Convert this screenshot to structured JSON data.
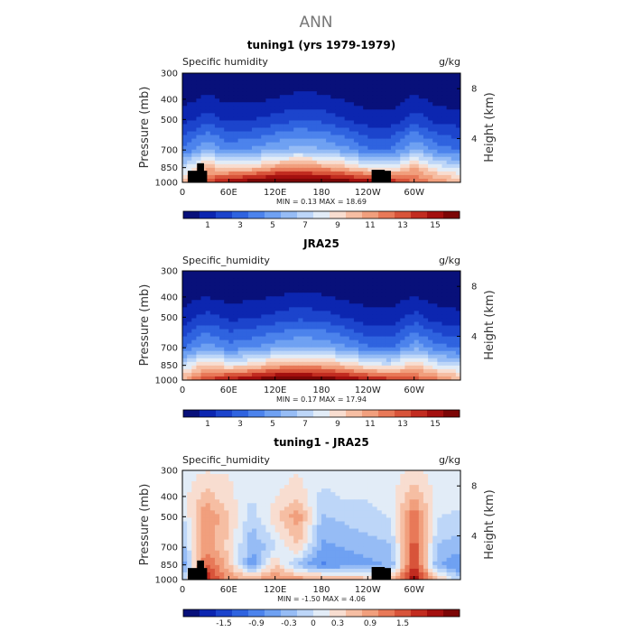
{
  "page_title": "ANN",
  "chart_data": [
    {
      "type": "heatmap",
      "title": "tuning1 (yrs 1979-1979)",
      "field_label": "Specific humidity",
      "units": "g/kg",
      "ylabel": "Pressure (mb)",
      "ylabel_right": "Height (km)",
      "x_ticks": [
        "0",
        "60E",
        "120E",
        "180",
        "120W",
        "60W"
      ],
      "y_ticks": [
        "300",
        "400",
        "500",
        "700",
        "850",
        "1000"
      ],
      "y_right_ticks": [
        "8",
        "4"
      ],
      "stats": {
        "min": 0.13,
        "max": 18.69,
        "text": "MIN =    0.13   MAX =   18.69"
      },
      "colorbar_ticks": [
        "1",
        "3",
        "5",
        "7",
        "9",
        "11",
        "13",
        "15"
      ],
      "colorbar_colors": [
        "#08107a",
        "#0c26b0",
        "#1c44cc",
        "#2f63df",
        "#4c83ec",
        "#6fa1f2",
        "#96bcf5",
        "#bdd6f8",
        "#e2ecf7",
        "#f8ddd0",
        "#f6bea3",
        "#f19f7d",
        "#e87958",
        "#d8543a",
        "#c22c20",
        "#a4100f",
        "#7c0606"
      ],
      "data": {
        "x": [
          0,
          30,
          60,
          90,
          120,
          150,
          180,
          210,
          240,
          270,
          300,
          330,
          360
        ],
        "pressure": [
          300,
          400,
          500,
          700,
          850,
          1000
        ],
        "values": [
          [
            0.2,
            0.3,
            0.2,
            0.2,
            0.3,
            0.3,
            0.3,
            0.3,
            0.2,
            0.2,
            0.3,
            0.2,
            0.2
          ],
          [
            0.6,
            1.2,
            0.8,
            0.8,
            1.0,
            1.3,
            1.2,
            0.9,
            0.6,
            0.6,
            1.2,
            0.7,
            0.6
          ],
          [
            1.4,
            2.6,
            1.8,
            1.9,
            2.4,
            2.9,
            2.7,
            2.1,
            1.3,
            1.3,
            2.6,
            1.5,
            1.4
          ],
          [
            4.0,
            6.0,
            4.8,
            5.2,
            6.0,
            6.5,
            6.2,
            5.4,
            4.2,
            4.0,
            6.2,
            4.6,
            4.0
          ],
          [
            7.5,
            11.0,
            9.5,
            10.0,
            11.5,
            12.0,
            11.5,
            10.5,
            9.0,
            8.5,
            11.0,
            8.5,
            7.5
          ],
          [
            10.5,
            13.5,
            16.0,
            17.0,
            18.0,
            18.0,
            17.5,
            17.0,
            16.0,
            15.0,
            13.0,
            12.0,
            10.5
          ]
        ]
      }
    },
    {
      "type": "heatmap",
      "title": "JRA25",
      "field_label": "Specific_humidity",
      "units": "g/kg",
      "ylabel": "Pressure (mb)",
      "ylabel_right": "Height (km)",
      "x_ticks": [
        "0",
        "60E",
        "120E",
        "180",
        "120W",
        "60W"
      ],
      "y_ticks": [
        "300",
        "400",
        "500",
        "700",
        "850",
        "1000"
      ],
      "y_right_ticks": [
        "8",
        "4"
      ],
      "stats": {
        "min": 0.17,
        "max": 17.94,
        "text": "MIN =    0.17   MAX =   17.94"
      },
      "colorbar_ticks": [
        "1",
        "3",
        "5",
        "7",
        "9",
        "11",
        "13",
        "15"
      ],
      "colorbar_colors": [
        "#08107a",
        "#0c26b0",
        "#1c44cc",
        "#2f63df",
        "#4c83ec",
        "#6fa1f2",
        "#96bcf5",
        "#bdd6f8",
        "#e2ecf7",
        "#f8ddd0",
        "#f6bea3",
        "#f19f7d",
        "#e87958",
        "#d8543a",
        "#c22c20",
        "#a4100f",
        "#7c0606"
      ],
      "data": {
        "x": [
          0,
          30,
          60,
          90,
          120,
          150,
          180,
          210,
          240,
          270,
          300,
          330,
          360
        ],
        "pressure": [
          300,
          400,
          500,
          700,
          850,
          1000
        ],
        "values": [
          [
            0.2,
            0.3,
            0.2,
            0.2,
            0.3,
            0.3,
            0.3,
            0.3,
            0.2,
            0.2,
            0.3,
            0.2,
            0.2
          ],
          [
            0.5,
            1.0,
            0.7,
            0.8,
            1.0,
            1.2,
            1.1,
            0.8,
            0.6,
            0.6,
            1.0,
            0.6,
            0.5
          ],
          [
            1.3,
            2.4,
            1.7,
            1.8,
            2.3,
            2.7,
            2.5,
            2.0,
            1.3,
            1.3,
            2.4,
            1.4,
            1.3
          ],
          [
            3.8,
            5.6,
            4.5,
            4.9,
            5.7,
            6.2,
            6.0,
            5.2,
            4.1,
            3.9,
            5.8,
            4.4,
            3.8
          ],
          [
            7.5,
            10.5,
            9.0,
            9.5,
            11.0,
            11.5,
            11.2,
            10.2,
            8.8,
            8.2,
            10.5,
            8.2,
            7.5
          ],
          [
            11.0,
            14.0,
            15.5,
            16.5,
            17.5,
            17.5,
            17.0,
            16.5,
            15.5,
            14.5,
            13.5,
            12.5,
            11.0
          ]
        ]
      }
    },
    {
      "type": "heatmap",
      "title": "tuning1 - JRA25",
      "field_label": "Specific_humidity",
      "units": "g/kg",
      "ylabel": "Pressure (mb)",
      "ylabel_right": "Height (km)",
      "x_ticks": [
        "0",
        "60E",
        "120E",
        "180",
        "120W",
        "60W"
      ],
      "y_ticks": [
        "300",
        "400",
        "500",
        "700",
        "850",
        "1000"
      ],
      "y_right_ticks": [
        "8",
        "4"
      ],
      "stats": {
        "min": -1.5,
        "max": 4.06,
        "text": "MIN =   -1.50   MAX =    4.06"
      },
      "colorbar_ticks": [
        "-1.5",
        "-0.9",
        "-0.3",
        "0",
        "0.3",
        "0.9",
        "1.5"
      ],
      "colorbar_colors": [
        "#08107a",
        "#0c26b0",
        "#1c44cc",
        "#2f63df",
        "#4c83ec",
        "#6fa1f2",
        "#96bcf5",
        "#bdd6f8",
        "#e2ecf7",
        "#f8ddd0",
        "#f6bea3",
        "#f19f7d",
        "#e87958",
        "#d8543a",
        "#c22c20",
        "#a4100f",
        "#7c0606"
      ],
      "data": {
        "x": [
          0,
          30,
          60,
          90,
          120,
          150,
          180,
          210,
          240,
          270,
          300,
          330,
          360
        ],
        "pressure": [
          300,
          400,
          500,
          700,
          850,
          1000
        ],
        "values": [
          [
            0.0,
            0.1,
            0.1,
            0.0,
            0.0,
            0.1,
            0.0,
            0.0,
            0.0,
            0.0,
            0.2,
            0.0,
            0.0
          ],
          [
            0.0,
            0.5,
            0.2,
            -0.1,
            0.1,
            0.3,
            -0.2,
            -0.1,
            -0.1,
            0.0,
            0.6,
            0.0,
            0.0
          ],
          [
            -0.2,
            0.9,
            0.4,
            -0.3,
            0.3,
            0.8,
            -0.4,
            -0.3,
            -0.2,
            -0.1,
            1.1,
            -0.1,
            -0.2
          ],
          [
            -0.5,
            0.8,
            0.3,
            -0.6,
            -0.2,
            0.4,
            -0.7,
            -0.6,
            -0.5,
            -0.4,
            1.3,
            -0.4,
            -0.5
          ],
          [
            -0.9,
            1.2,
            0.5,
            -0.8,
            0.4,
            -0.5,
            -0.9,
            -0.8,
            -0.7,
            -0.6,
            1.4,
            -0.6,
            -0.9
          ],
          [
            -0.3,
            1.6,
            0.8,
            0.6,
            0.9,
            0.8,
            0.7,
            0.6,
            0.5,
            0.5,
            1.8,
            0.5,
            -0.3
          ]
        ]
      }
    }
  ]
}
